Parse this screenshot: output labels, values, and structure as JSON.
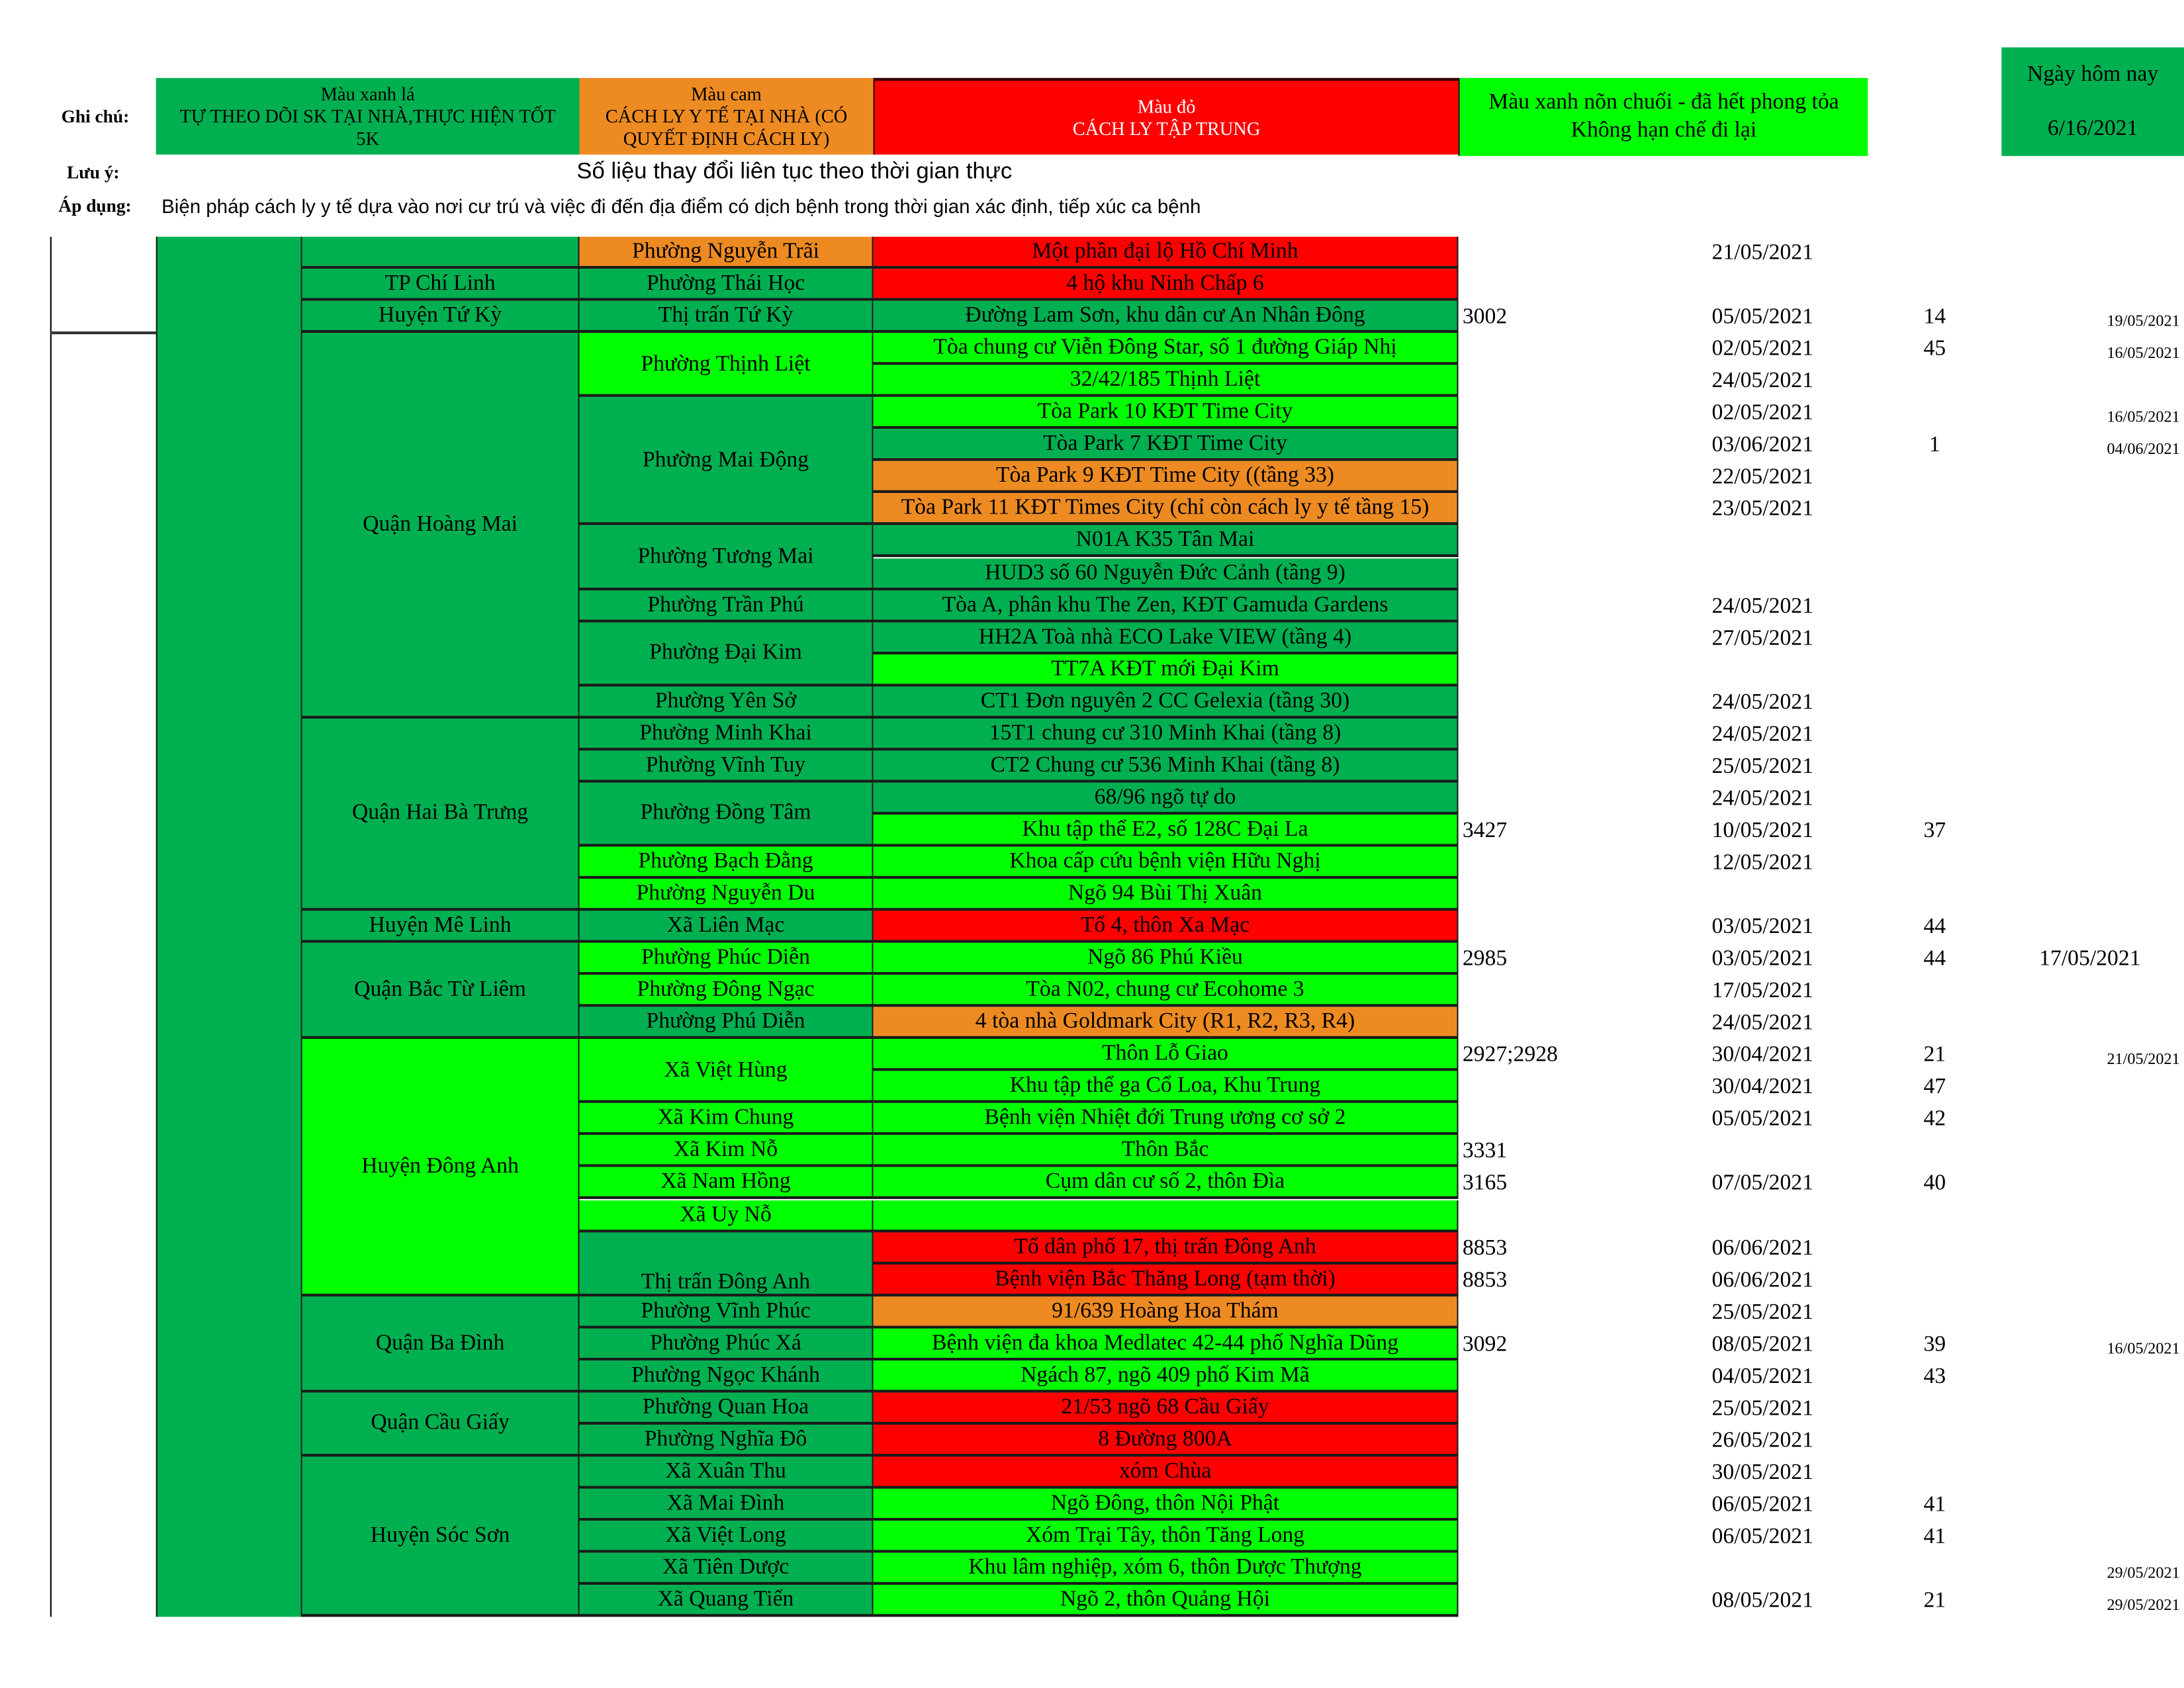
{
  "colors": {
    "green": "#00B050",
    "orange": "#ED8B22",
    "red": "#FF0000",
    "lime": "#00FF00"
  },
  "legend": {
    "label": "Ghi chú:",
    "green": {
      "line1": "Màu xanh lá",
      "line2": "TỰ THEO DÕI SK TẠI NHÀ,THỰC HIỆN TỐT 5K"
    },
    "orange": {
      "line1": "Màu cam",
      "line2": "CÁCH LY Y TẾ TẠI NHÀ (CÓ QUYẾT ĐỊNH CÁCH LY)"
    },
    "red": {
      "line1": "Màu đỏ",
      "line2": "CÁCH LY TẬP TRUNG"
    },
    "lime": {
      "line1": "Màu xanh nõn chuối - đã hết phong tỏa",
      "line2": "Không hạn chế đi lại"
    },
    "today": {
      "label": "Ngày hôm nay",
      "value": "6/16/2021"
    }
  },
  "note": {
    "label": "Lưu ý:",
    "text": "Số liệu thay đổi liên tục theo thời gian thực"
  },
  "apply": {
    "label": "Áp dụng:",
    "text": "Biện pháp cách ly y tế dựa vào nơi cư trú và việc đi đến địa điểm có dịch bệnh trong thời gian xác định, tiếp xúc ca bệnh"
  },
  "districts": [
    {
      "name": "",
      "color": "green",
      "start": 0,
      "span": 1
    },
    {
      "name": "TP Chí Linh",
      "color": "green",
      "start": 1,
      "span": 1
    },
    {
      "name": "Huyện Tứ Kỳ",
      "color": "green",
      "start": 2,
      "span": 1
    },
    {
      "name": "Quận Hoàng Mai",
      "color": "green",
      "start": 3,
      "span": 12
    },
    {
      "name": "Quận Hai Bà Trưng",
      "color": "green",
      "start": 15,
      "span": 6
    },
    {
      "name": "Huyện Mê Linh",
      "color": "green",
      "start": 21,
      "span": 1
    },
    {
      "name": "Quận Bắc Từ Liêm",
      "color": "green",
      "start": 22,
      "span": 3
    },
    {
      "name": "Huyện Đông Anh",
      "color": "lime",
      "start": 25,
      "span": 8
    },
    {
      "name": "Quận Ba Đình",
      "color": "green",
      "start": 33,
      "span": 3
    },
    {
      "name": "Quận Cầu Giấy",
      "color": "green",
      "start": 36,
      "span": 2
    },
    {
      "name": "Huyện Sóc Sơn",
      "color": "green",
      "start": 38,
      "span": 5
    }
  ],
  "wards": [
    {
      "name": "Phường Nguyễn Trãi",
      "color": "orange",
      "start": 0,
      "span": 1
    },
    {
      "name": "Phường Thái Học",
      "color": "green",
      "start": 1,
      "span": 1
    },
    {
      "name": "Thị trấn Tứ Kỳ",
      "color": "green",
      "start": 2,
      "span": 1
    },
    {
      "name": "Phường Thịnh Liệt",
      "color": "lime",
      "start": 3,
      "span": 2
    },
    {
      "name": "Phường Mai Động",
      "color": "green",
      "start": 5,
      "span": 4
    },
    {
      "name": "Phường Tương Mai",
      "color": "green",
      "start": 9,
      "span": 2
    },
    {
      "name": "Phường Trần Phú",
      "color": "green",
      "start": 11,
      "span": 1
    },
    {
      "name": "Phường Đại Kim",
      "color": "green",
      "start": 12,
      "span": 2
    },
    {
      "name": "Phường Yên Sở",
      "color": "green",
      "start": 14,
      "span": 1
    },
    {
      "name": "Phường Minh Khai",
      "color": "green",
      "start": 15,
      "span": 1
    },
    {
      "name": "Phường Vĩnh Tuy",
      "color": "green",
      "start": 16,
      "span": 1
    },
    {
      "name": "Phường Đồng Tâm",
      "color": "green",
      "start": 17,
      "span": 2
    },
    {
      "name": "Phường Bạch Đằng",
      "color": "lime",
      "start": 19,
      "span": 1
    },
    {
      "name": "Phường Nguyễn Du",
      "color": "lime",
      "start": 20,
      "span": 1
    },
    {
      "name": "Xã Liên Mạc",
      "color": "green",
      "start": 21,
      "span": 1
    },
    {
      "name": "Phường Phúc Diễn",
      "color": "lime",
      "start": 22,
      "span": 1
    },
    {
      "name": "Phường Đông Ngạc",
      "color": "lime",
      "start": 23,
      "span": 1
    },
    {
      "name": "Phường Phú Diễn",
      "color": "green",
      "start": 24,
      "span": 1
    },
    {
      "name": "Xã Việt Hùng",
      "color": "lime",
      "start": 25,
      "span": 2
    },
    {
      "name": "Xã Kim Chung",
      "color": "lime",
      "start": 27,
      "span": 1
    },
    {
      "name": "Xã Kim Nỗ",
      "color": "lime",
      "start": 28,
      "span": 1
    },
    {
      "name": "Xã Nam Hồng",
      "color": "lime",
      "start": 29,
      "span": 1
    },
    {
      "name": "Xã Uy Nỗ",
      "color": "lime",
      "start": 30,
      "span": 1
    },
    {
      "name": "Thị trấn Đông Anh",
      "color": "green",
      "start": 31,
      "span": 2,
      "valign": "bottom"
    },
    {
      "name": "Phường Vĩnh Phúc",
      "color": "green",
      "start": 33,
      "span": 1
    },
    {
      "name": "Phường Phúc Xá",
      "color": "green",
      "start": 34,
      "span": 1
    },
    {
      "name": "Phường Ngọc Khánh",
      "color": "green",
      "start": 35,
      "span": 1
    },
    {
      "name": "Phường Quan Hoa",
      "color": "green",
      "start": 36,
      "span": 1
    },
    {
      "name": "Phường Nghĩa Đô",
      "color": "green",
      "start": 37,
      "span": 1
    },
    {
      "name": "Xã Xuân Thu",
      "color": "green",
      "start": 38,
      "span": 1
    },
    {
      "name": "Xã Mai Đình",
      "color": "green",
      "start": 39,
      "span": 1
    },
    {
      "name": "Xã Việt Long",
      "color": "green",
      "start": 40,
      "span": 1
    },
    {
      "name": "Xã Tiên Dược",
      "color": "green",
      "start": 41,
      "span": 1
    },
    {
      "name": "Xã Quang Tiến",
      "color": "green",
      "start": 42,
      "span": 1
    }
  ],
  "rows": [
    {
      "loc": "Một phần đại lộ Hồ Chí Minh",
      "color": "red",
      "code": "",
      "date": "21/05/2021",
      "count": "",
      "date2": ""
    },
    {
      "loc": "4 hộ khu Ninh Chấp 6",
      "color": "red",
      "code": "",
      "date": "",
      "count": "",
      "date2": ""
    },
    {
      "loc": "Đường Lam Sơn, khu dân cư An Nhân Đông",
      "color": "green",
      "code": "3002",
      "date": "05/05/2021",
      "count": "14",
      "date2": "19/05/2021"
    },
    {
      "loc": "Tòa chung cư Viễn Đông Star, số 1 đường Giáp Nhị",
      "color": "lime",
      "code": "",
      "date": "02/05/2021",
      "count": "45",
      "date2": "16/05/2021"
    },
    {
      "loc": "32/42/185 Thịnh Liệt",
      "color": "lime",
      "code": "",
      "date": "24/05/2021",
      "count": "",
      "date2": ""
    },
    {
      "loc": "Tòa Park 10 KĐT Time City",
      "color": "lime",
      "code": "",
      "date": "02/05/2021",
      "count": "",
      "date2": "16/05/2021"
    },
    {
      "loc": "Tòa Park 7 KĐT Time City",
      "color": "green",
      "code": "",
      "date": "03/06/2021",
      "count": "1",
      "date2": "04/06/2021"
    },
    {
      "loc": "Tòa Park 9 KĐT Time City ((tầng 33)",
      "color": "orange",
      "code": "",
      "date": "22/05/2021",
      "count": "",
      "date2": ""
    },
    {
      "loc": "Tòa Park 11 KĐT Times City (chỉ còn cách ly y tế tầng 15)",
      "color": "orange",
      "code": "",
      "date": "23/05/2021",
      "count": "",
      "date2": ""
    },
    {
      "loc": "N01A K35 Tân Mai",
      "color": "green",
      "code": "",
      "date": "",
      "count": "",
      "date2": ""
    },
    {
      "loc": "HUD3 số 60 Nguyễn Đức Cảnh (tầng 9)",
      "color": "green",
      "code": "",
      "date": "",
      "count": "",
      "date2": ""
    },
    {
      "loc": "Tòa A, phân khu The Zen, KĐT Gamuda Gardens",
      "color": "green",
      "code": "",
      "date": "24/05/2021",
      "count": "",
      "date2": ""
    },
    {
      "loc": "HH2A Toà nhà ECO Lake VIEW (tầng 4)",
      "color": "green",
      "code": "",
      "date": "27/05/2021",
      "count": "",
      "date2": ""
    },
    {
      "loc": "TT7A KĐT mới Đại Kim",
      "color": "lime",
      "code": "",
      "date": "",
      "count": "",
      "date2": ""
    },
    {
      "loc": "CT1 Đơn nguyên 2 CC Gelexia (tầng 30)",
      "color": "green",
      "code": "",
      "date": "24/05/2021",
      "count": "",
      "date2": ""
    },
    {
      "loc": "15T1 chung cư 310 Minh Khai (tầng 8)",
      "color": "green",
      "code": "",
      "date": "24/05/2021",
      "count": "",
      "date2": ""
    },
    {
      "loc": "CT2 Chung cư 536 Minh Khai (tầng 8)",
      "color": "green",
      "code": "",
      "date": "25/05/2021",
      "count": "",
      "date2": ""
    },
    {
      "loc": "68/96 ngõ tự do",
      "color": "green",
      "code": "",
      "date": "24/05/2021",
      "count": "",
      "date2": ""
    },
    {
      "loc": "Khu tập thể E2, số 128C Đại La",
      "color": "lime",
      "code": "3427",
      "date": "10/05/2021",
      "count": "37",
      "date2": ""
    },
    {
      "loc": "Khoa cấp cứu bệnh viện Hữu Nghị",
      "color": "lime",
      "code": "",
      "date": "12/05/2021",
      "count": "",
      "date2": ""
    },
    {
      "loc": "Ngõ 94 Bùi Thị Xuân",
      "color": "lime",
      "code": "",
      "date": "",
      "count": "",
      "date2": ""
    },
    {
      "loc": "Tổ 4, thôn Xa Mạc",
      "color": "red",
      "code": "",
      "date": "03/05/2021",
      "count": "44",
      "date2": ""
    },
    {
      "loc": "Ngõ 86 Phú Kiều",
      "color": "lime",
      "code": "2985",
      "date": "03/05/2021",
      "count": "44",
      "date2": "17/05/2021",
      "date2_large": true
    },
    {
      "loc": "Tòa N02, chung cư Ecohome 3",
      "color": "lime",
      "code": "",
      "date": "17/05/2021",
      "count": "",
      "date2": ""
    },
    {
      "loc": "4 tòa nhà Goldmark City (R1, R2, R3, R4)",
      "color": "orange",
      "code": "",
      "date": "24/05/2021",
      "count": "",
      "date2": ""
    },
    {
      "loc": "Thôn Lỗ Giao",
      "color": "lime",
      "code": "2927;2928",
      "date": "30/04/2021",
      "count": "21",
      "date2": "21/05/2021"
    },
    {
      "loc": "Khu tập thể ga Cổ Loa, Khu Trung",
      "color": "lime",
      "code": "",
      "date": "30/04/2021",
      "count": "47",
      "date2": ""
    },
    {
      "loc": "Bệnh viện Nhiệt đới Trung ương cơ sở 2",
      "color": "lime",
      "code": "",
      "date": "05/05/2021",
      "count": "42",
      "date2": ""
    },
    {
      "loc": "Thôn Bắc",
      "color": "lime",
      "code": "3331",
      "date": "",
      "count": "",
      "date2": ""
    },
    {
      "loc": "Cụm dân cư số 2, thôn Đìa",
      "color": "lime",
      "code": "3165",
      "date": "07/05/2021",
      "count": "40",
      "date2": ""
    },
    {
      "loc": "",
      "color": "lime",
      "code": "",
      "date": "",
      "count": "",
      "date2": ""
    },
    {
      "loc": "Tổ dân phố 17, thị trấn Đông Anh",
      "color": "red",
      "code": "8853",
      "date": "06/06/2021",
      "count": "",
      "date2": ""
    },
    {
      "loc": "Bệnh viện Bắc Thăng Long (tạm thời)",
      "color": "red",
      "code": "8853",
      "date": "06/06/2021",
      "count": "",
      "date2": ""
    },
    {
      "loc": "91/639 Hoàng Hoa Thám",
      "color": "orange",
      "code": "",
      "date": "25/05/2021",
      "count": "",
      "date2": ""
    },
    {
      "loc": "Bệnh viện đa khoa Medlatec 42-44 phố Nghĩa Dũng",
      "color": "lime",
      "code": "3092",
      "date": "08/05/2021",
      "count": "39",
      "date2": "16/05/2021"
    },
    {
      "loc": "Ngách 87, ngõ 409 phố Kim Mã",
      "color": "lime",
      "code": "",
      "date": "04/05/2021",
      "count": "43",
      "date2": ""
    },
    {
      "loc": "21/53 ngõ 68 Cầu Giấy",
      "color": "red",
      "code": "",
      "date": "25/05/2021",
      "count": "",
      "date2": ""
    },
    {
      "loc": "8 Đường 800A",
      "color": "red",
      "code": "",
      "date": "26/05/2021",
      "count": "",
      "date2": ""
    },
    {
      "loc": "xóm Chùa",
      "color": "red",
      "code": "",
      "date": "30/05/2021",
      "count": "",
      "date2": ""
    },
    {
      "loc": "Ngõ Đông, thôn Nội Phật",
      "color": "lime",
      "code": "",
      "date": "06/05/2021",
      "count": "41",
      "date2": ""
    },
    {
      "loc": "Xóm Trại Tây, thôn Tăng Long",
      "color": "lime",
      "code": "",
      "date": "06/05/2021",
      "count": "41",
      "date2": ""
    },
    {
      "loc": "Khu lâm nghiệp, xóm 6, thôn Dược Thượng",
      "color": "lime",
      "code": "",
      "date": "",
      "count": "",
      "date2": "29/05/2021"
    },
    {
      "loc": "Ngõ 2, thôn Quảng Hội",
      "color": "lime",
      "code": "",
      "date": "08/05/2021",
      "count": "21",
      "date2": "29/05/2021"
    }
  ]
}
